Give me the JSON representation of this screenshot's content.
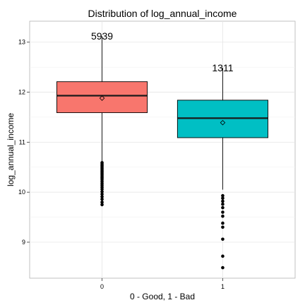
{
  "chart_data": {
    "type": "boxplot",
    "title": "Distribution of log_annual_income",
    "xlabel": "0 - Good, 1 - Bad",
    "ylabel": "log_annual_income",
    "ylim": [
      8.28,
      13.42
    ],
    "yticks": [
      9,
      10,
      11,
      12,
      13
    ],
    "grid": true,
    "legend": "none",
    "categories": [
      "0",
      "1"
    ],
    "boxes": [
      {
        "category": "0",
        "count_label": "5939",
        "color": "#F8766D",
        "whisker_low": 10.6,
        "q1": 11.59,
        "median": 11.93,
        "q3": 12.21,
        "whisker_high": 13.12,
        "mean": 11.88,
        "outliers": [
          10.59,
          10.56,
          10.53,
          10.5,
          10.47,
          10.44,
          10.41,
          10.38,
          10.35,
          10.32,
          10.29,
          10.26,
          10.22,
          10.18,
          10.14,
          10.1,
          10.06,
          10.01,
          9.96,
          9.91,
          9.86,
          9.8,
          9.75
        ]
      },
      {
        "category": "1",
        "count_label": "1311",
        "color": "#00BFC4",
        "whisker_low": 10.05,
        "q1": 11.09,
        "median": 11.48,
        "q3": 11.84,
        "whisker_high": 12.49,
        "mean": 11.39,
        "outliers": [
          9.93,
          9.88,
          9.82,
          9.76,
          9.69,
          9.6,
          9.52,
          9.38,
          9.3,
          9.06,
          8.72,
          8.49
        ]
      }
    ]
  }
}
